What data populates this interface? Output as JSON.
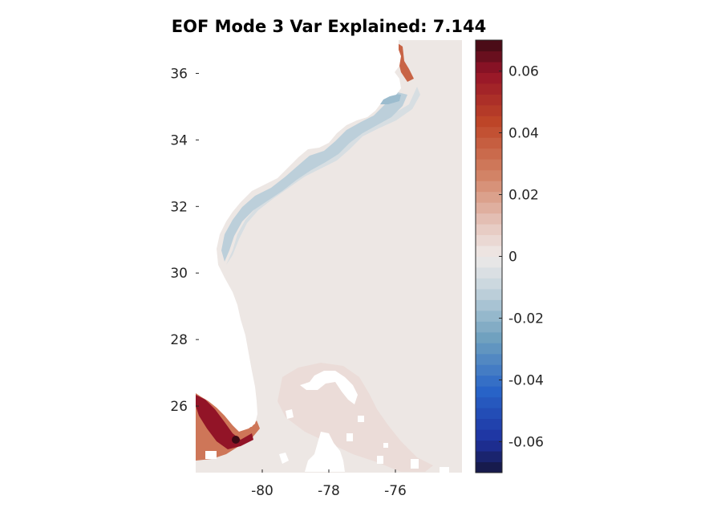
{
  "chart_data": {
    "type": "heatmap",
    "title": "EOF Mode 3 Var Explained: 7.144",
    "xlabel": "",
    "ylabel": "",
    "xlim": [
      -82.0,
      -74.0
    ],
    "ylim": [
      24.0,
      37.0
    ],
    "x_ticks": [
      {
        "value": -80,
        "label": "-80"
      },
      {
        "value": -78,
        "label": "-78"
      },
      {
        "value": -76,
        "label": "-76"
      }
    ],
    "y_ticks": [
      {
        "value": 26,
        "label": "26"
      },
      {
        "value": 28,
        "label": "28"
      },
      {
        "value": 30,
        "label": "30"
      },
      {
        "value": 32,
        "label": "32"
      },
      {
        "value": 34,
        "label": "34"
      },
      {
        "value": 36,
        "label": "36"
      }
    ],
    "colorbar": {
      "range": [
        -0.07,
        0.07
      ],
      "levels": 40,
      "orientation": "vertical",
      "placement": "right",
      "colormap": "diverging blue-white-red",
      "ticks": [
        {
          "value": 0.06,
          "label": "0.06"
        },
        {
          "value": 0.04,
          "label": "0.04"
        },
        {
          "value": 0.02,
          "label": "0.02"
        },
        {
          "value": 0,
          "label": "0"
        },
        {
          "value": -0.02,
          "label": "-0.02"
        },
        {
          "value": -0.04,
          "label": "-0.04"
        },
        {
          "value": -0.06,
          "label": "-0.06"
        }
      ]
    },
    "field": {
      "background_value": 0.001,
      "features": [
        {
          "name": "shelf-carolinas",
          "value": -0.012
        },
        {
          "name": "shelf-outer-carolinas",
          "value": -0.006
        },
        {
          "name": "pamlico-sound",
          "value": -0.018
        },
        {
          "name": "chesapeake-edge",
          "value": 0.035
        },
        {
          "name": "florida-bay",
          "value": 0.06
        },
        {
          "name": "gulf-coast-florida",
          "value": 0.03
        },
        {
          "name": "bahamas-banks",
          "value": 0.004
        }
      ]
    },
    "grid": false,
    "legend": "none"
  }
}
